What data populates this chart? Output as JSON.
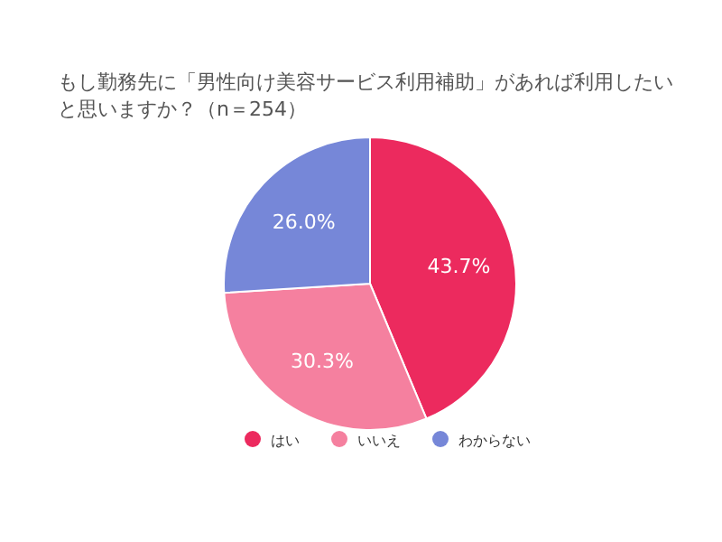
{
  "chart_data": {
    "type": "pie",
    "title": "もし勤務先に「男性向け美容サービス利用補助」があれば利用したいと思いますか？（n＝254）",
    "categories": [
      "はい",
      "いいえ",
      "わからない"
    ],
    "values": [
      43.7,
      30.3,
      26.0
    ],
    "value_labels": [
      "43.7%",
      "30.3%",
      "26.0%"
    ],
    "colors": [
      "#ec2a5e",
      "#f5809f",
      "#7687d8"
    ],
    "legend": "bottom"
  }
}
